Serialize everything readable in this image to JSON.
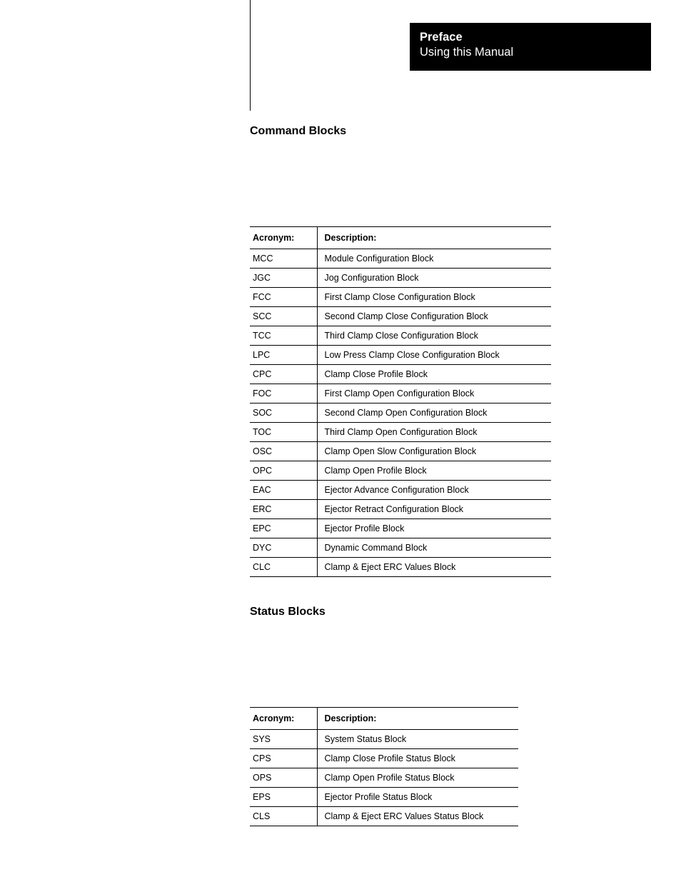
{
  "header": {
    "title": "Preface",
    "subtitle": "Using this Manual"
  },
  "sections": [
    {
      "title": "Command Blocks",
      "table_class": "command-table",
      "columns": [
        "Acronym:",
        "Description:"
      ],
      "rows": [
        [
          "MCC",
          "Module Configuration Block"
        ],
        [
          "JGC",
          "Jog Configuration Block"
        ],
        [
          "FCC",
          "First Clamp Close Configuration Block"
        ],
        [
          "SCC",
          "Second Clamp Close Configuration Block"
        ],
        [
          "TCC",
          "Third Clamp Close Configuration Block"
        ],
        [
          "LPC",
          "Low Press Clamp Close Configuration Block"
        ],
        [
          "CPC",
          "Clamp Close Profile Block"
        ],
        [
          "FOC",
          "First Clamp Open Configuration Block"
        ],
        [
          "SOC",
          "Second Clamp Open Configuration Block"
        ],
        [
          "TOC",
          "Third Clamp Open Configuration Block"
        ],
        [
          "OSC",
          "Clamp Open Slow Configuration Block"
        ],
        [
          "OPC",
          "Clamp Open Profile Block"
        ],
        [
          "EAC",
          "Ejector Advance Configuration Block"
        ],
        [
          "ERC",
          "Ejector Retract Configuration Block"
        ],
        [
          "EPC",
          "Ejector Profile Block"
        ],
        [
          "DYC",
          "Dynamic Command Block"
        ],
        [
          "CLC",
          "Clamp & Eject ERC Values Block"
        ]
      ]
    },
    {
      "title": "Status Blocks",
      "table_class": "status-table",
      "columns": [
        "Acronym:",
        "Description:"
      ],
      "rows": [
        [
          "SYS",
          "System Status Block"
        ],
        [
          "CPS",
          "Clamp  Close Profile Status Block"
        ],
        [
          "OPS",
          "Clamp Open Profile Status Block"
        ],
        [
          "EPS",
          "Ejector Profile Status Block"
        ],
        [
          "CLS",
          "Clamp & Eject ERC Values Status Block"
        ]
      ]
    }
  ],
  "colors": {
    "background": "#ffffff",
    "header_bg": "#000000",
    "header_text": "#ffffff",
    "text": "#000000",
    "rule": "#000000"
  },
  "fonts": {
    "header_title_size": 16.5,
    "section_title_size": 16,
    "table_text_size": 12.5
  }
}
